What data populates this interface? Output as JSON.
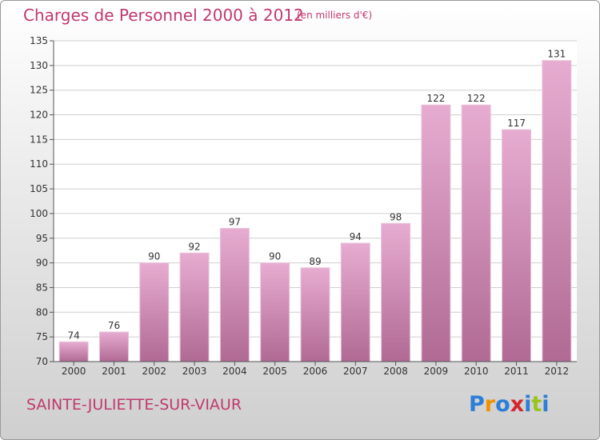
{
  "title": "Charges de Personnel 2000 à 2012",
  "subtitle": "(en milliers d'€)",
  "commune": "SAINTE-JULIETTE-SUR-VIAUR",
  "logo": {
    "letters": [
      "P",
      "r",
      "o",
      "x",
      "i",
      "t",
      "i"
    ],
    "colors": [
      "#2b7fd6",
      "#f29100",
      "#2b7fd6",
      "#d4262e",
      "#2b7fd6",
      "#9bc31c",
      "#2b7fd6"
    ]
  },
  "colors": {
    "accent": "#c1396d",
    "bar_top": "#e7acd1",
    "bar_bottom": "#b06a94",
    "axis": "#555555"
  },
  "chart_data": {
    "type": "bar",
    "categories": [
      "2000",
      "2001",
      "2002",
      "2003",
      "2004",
      "2005",
      "2006",
      "2007",
      "2008",
      "2009",
      "2010",
      "2011",
      "2012"
    ],
    "values": [
      74,
      76,
      90,
      92,
      97,
      90,
      89,
      94,
      98,
      122,
      122,
      117,
      131
    ],
    "ylim": [
      70,
      135
    ],
    "yticks": [
      70,
      75,
      80,
      85,
      90,
      95,
      100,
      105,
      110,
      115,
      120,
      125,
      130,
      135
    ],
    "grid": true,
    "xlabel": "",
    "ylabel": ""
  }
}
